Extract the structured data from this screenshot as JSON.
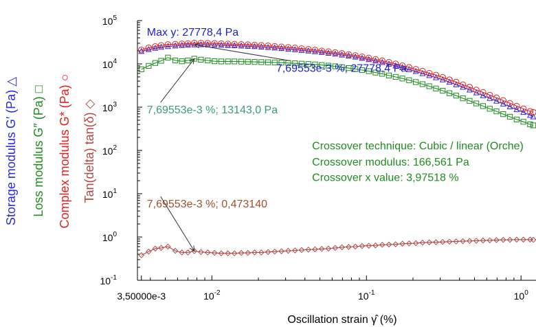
{
  "chart_data": {
    "type": "line",
    "x_scale": "log",
    "y_scale": "log",
    "xlim": [
      0.0033,
      1.25
    ],
    "ylim": [
      0.1,
      100000
    ],
    "xlabel": "Oscillation strain  γ̂  (%)",
    "x_ticks": [
      {
        "value": 0.0035,
        "label": "3,50000e-3"
      },
      {
        "value": 0.01,
        "label": "10",
        "exp": "-2"
      },
      {
        "value": 0.1,
        "label": "10",
        "exp": "-1"
      },
      {
        "value": 1,
        "label": "10",
        "exp": "0"
      }
    ],
    "y_ticks": [
      {
        "value": 0.1,
        "label": "10",
        "exp": "-1"
      },
      {
        "value": 1,
        "label": "10",
        "exp": "0"
      },
      {
        "value": 10,
        "label": "10",
        "exp": "1"
      },
      {
        "value": 100,
        "label": "10",
        "exp": "2"
      },
      {
        "value": 1000,
        "label": "10",
        "exp": "3"
      },
      {
        "value": 10000,
        "label": "10",
        "exp": "4"
      },
      {
        "value": 100000,
        "label": "10",
        "exp": "5"
      }
    ],
    "axis_labels": [
      {
        "text": "Storage modulus G′ (Pa)",
        "symbol": "△",
        "color": "#2a2ad8"
      },
      {
        "text": "Loss modulus G″ (Pa)",
        "symbol": "□",
        "color": "#1e8c1e"
      },
      {
        "text": "Complex modulus G* (Pa)",
        "symbol": "○",
        "color": "#e02020"
      },
      {
        "text": "Tan(delta) tan(δ)",
        "symbol": "◇",
        "color": "#b04848"
      }
    ],
    "x": [
      0.0035,
      0.0039,
      0.0043,
      0.0047,
      0.0052,
      0.0058,
      0.0064,
      0.007,
      0.0077,
      0.0085,
      0.0094,
      0.0104,
      0.0115,
      0.0127,
      0.014,
      0.0155,
      0.0171,
      0.0189,
      0.0209,
      0.0231,
      0.0255,
      0.0282,
      0.0312,
      0.0345,
      0.0381,
      0.0421,
      0.0465,
      0.0514,
      0.0568,
      0.0628,
      0.0694,
      0.0767,
      0.0848,
      0.0937,
      0.1036,
      0.1145,
      0.1265,
      0.1398,
      0.1545,
      0.1708,
      0.1888,
      0.2087,
      0.2306,
      0.2549,
      0.2817,
      0.3114,
      0.3442,
      0.3804,
      0.4205,
      0.4648,
      0.5138,
      0.5679,
      0.6277,
      0.6938,
      0.7669,
      0.8477,
      0.937,
      1.0357,
      1.1448,
      1.2
    ],
    "series": [
      {
        "name": "Storage modulus G′ (Pa)",
        "marker": "triangle",
        "color": "#2a2ad8",
        "values": [
          19500,
          21500,
          23000,
          24300,
          25300,
          26100,
          26800,
          27300,
          27700,
          27800,
          27600,
          27300,
          27000,
          26700,
          26400,
          26000,
          25600,
          25100,
          24600,
          24000,
          23400,
          22700,
          22000,
          21300,
          20600,
          19900,
          19200,
          18500,
          17700,
          16900,
          16100,
          15300,
          14400,
          13500,
          12600,
          11700,
          10800,
          9900,
          9000,
          8200,
          7400,
          6700,
          6000,
          5400,
          4800,
          4300,
          3800,
          3300,
          2900,
          2500,
          2150,
          1850,
          1600,
          1380,
          1190,
          1020,
          880,
          760,
          650,
          600
        ]
      },
      {
        "name": "Loss modulus G″ (Pa)",
        "marker": "square",
        "color": "#1e8c1e",
        "values": [
          7500,
          9000,
          10500,
          11800,
          14000,
          12000,
          11500,
          12000,
          13143,
          12500,
          12000,
          11500,
          11400,
          11400,
          11400,
          11300,
          11200,
          11100,
          11000,
          10900,
          10800,
          10700,
          10500,
          10300,
          10100,
          9900,
          9700,
          9400,
          9100,
          8800,
          8400,
          8000,
          7600,
          7200,
          6800,
          6300,
          5900,
          5400,
          5000,
          4600,
          4200,
          3800,
          3400,
          3050,
          2700,
          2400,
          2100,
          1850,
          1600,
          1400,
          1220,
          1060,
          920,
          800,
          690,
          600,
          520,
          460,
          400,
          380
        ]
      },
      {
        "name": "Complex modulus G* (Pa)",
        "marker": "circle",
        "color": "#e02020",
        "values": [
          21000,
          23500,
          25200,
          26800,
          28000,
          28500,
          29000,
          29500,
          30200,
          30300,
          30000,
          29700,
          29300,
          28900,
          28500,
          28100,
          27700,
          27200,
          26700,
          26100,
          25500,
          24800,
          24100,
          23300,
          22500,
          21700,
          20900,
          20000,
          19200,
          18300,
          17400,
          16500,
          15600,
          14600,
          13700,
          12700,
          11800,
          10900,
          10000,
          9100,
          8300,
          7500,
          6800,
          6100,
          5500,
          4900,
          4300,
          3800,
          3300,
          2900,
          2500,
          2200,
          1900,
          1650,
          1430,
          1230,
          1060,
          920,
          800,
          760
        ]
      },
      {
        "name": "Tan(delta) tan(δ)",
        "marker": "diamond",
        "color": "#b04848",
        "values": [
          0.38,
          0.46,
          0.54,
          0.56,
          0.6,
          0.48,
          0.44,
          0.44,
          0.473,
          0.45,
          0.44,
          0.43,
          0.42,
          0.42,
          0.42,
          0.43,
          0.43,
          0.44,
          0.44,
          0.45,
          0.46,
          0.47,
          0.48,
          0.49,
          0.5,
          0.51,
          0.52,
          0.53,
          0.54,
          0.56,
          0.58,
          0.59,
          0.6,
          0.62,
          0.63,
          0.64,
          0.66,
          0.67,
          0.68,
          0.7,
          0.71,
          0.72,
          0.74,
          0.75,
          0.76,
          0.77,
          0.78,
          0.79,
          0.8,
          0.81,
          0.82,
          0.83,
          0.84,
          0.85,
          0.86,
          0.86,
          0.87,
          0.87,
          0.87,
          0.86
        ]
      }
    ],
    "annotations": [
      {
        "text": "Max y: 27778,4 Pa",
        "color": "#2020d0",
        "x": 0.0035,
        "y": 45000,
        "anchor": "start"
      },
      {
        "text": "7,69553e-3 %; 27778,4 Pa",
        "color": "#2020d0",
        "x": 0.024,
        "y": 6600,
        "anchor": "start",
        "arrow_to": {
          "x": 0.0077,
          "y": 27778
        }
      },
      {
        "text": "7,69553e-3 %; 13143,0 Pa",
        "color": "#3a9a7a",
        "x": 0.0035,
        "y": 720,
        "anchor": "start",
        "arrow_to": {
          "x": 0.0077,
          "y": 13143
        }
      },
      {
        "text": "Crossover technique: Cubic / linear (Orche)",
        "color": "#1e8c1e",
        "x": 0.041,
        "y": 105,
        "anchor": "start"
      },
      {
        "text": "Crossover modulus: 166,561 Pa",
        "color": "#1e8c1e",
        "x": 0.041,
        "y": 45,
        "anchor": "start"
      },
      {
        "text": "Crossover x value: 3,97518 %",
        "color": "#1e8c1e",
        "x": 0.041,
        "y": 19.5,
        "anchor": "start"
      },
      {
        "text": "7,69553e-3 %; 0,473140",
        "color": "#a0502a",
        "x": 0.0035,
        "y": 4.8,
        "anchor": "start",
        "arrow_to": {
          "x": 0.0077,
          "y": 0.473
        }
      }
    ]
  }
}
